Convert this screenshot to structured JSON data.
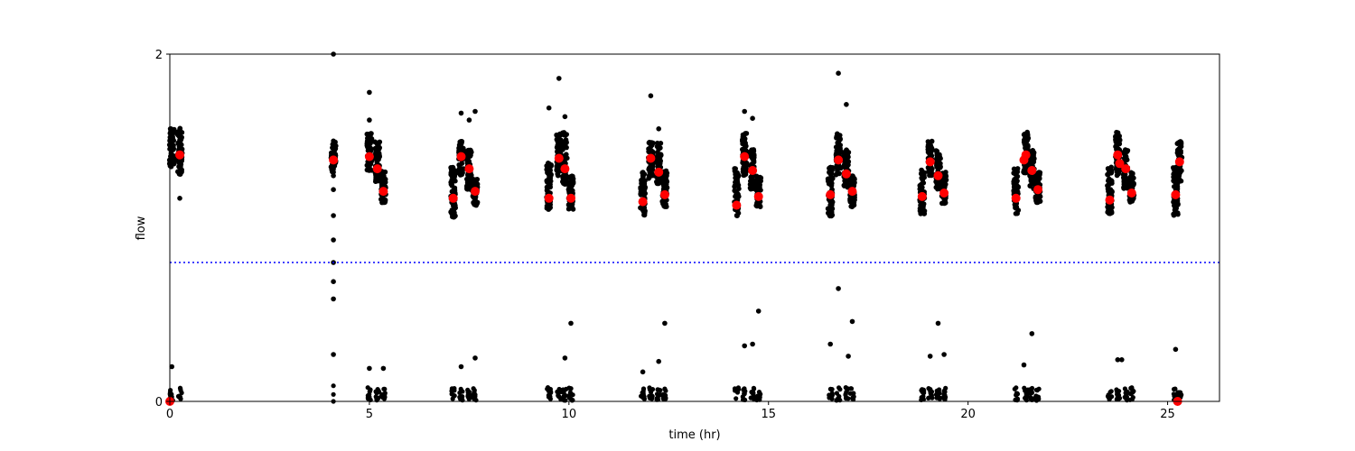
{
  "chart_data": {
    "type": "scatter",
    "title": "",
    "xlabel": "time (hr)",
    "ylabel": "flow",
    "xlim": [
      0,
      26.3
    ],
    "ylim": [
      0,
      2
    ],
    "x_ticks": [
      0,
      5,
      10,
      15,
      20,
      25
    ],
    "y_ticks": [
      0,
      2
    ],
    "grid": false,
    "threshold_line": {
      "y": 0.8,
      "color": "#0000ff",
      "style": "dotted"
    },
    "colors": {
      "raw": "#000000",
      "mean": "#ff0000",
      "threshold": "#0000ff"
    },
    "clusters": [
      {
        "t": 0.05,
        "high": [
          1.35,
          1.58
        ]
      },
      {
        "t": 0.25,
        "high": [
          1.3,
          1.58
        ]
      },
      {
        "t": 4.1,
        "high": [
          1.32,
          1.5
        ]
      },
      {
        "t": 5.0,
        "high": [
          1.33,
          1.55
        ]
      },
      {
        "t": 5.2,
        "high": [
          1.25,
          1.5
        ]
      },
      {
        "t": 5.35,
        "high": [
          1.14,
          1.33
        ]
      },
      {
        "t": 7.1,
        "high": [
          1.06,
          1.35
        ]
      },
      {
        "t": 7.3,
        "high": [
          1.3,
          1.5
        ]
      },
      {
        "t": 7.5,
        "high": [
          1.22,
          1.45
        ]
      },
      {
        "t": 7.65,
        "high": [
          1.12,
          1.28
        ]
      },
      {
        "t": 9.5,
        "high": [
          1.1,
          1.38
        ]
      },
      {
        "t": 9.75,
        "high": [
          1.3,
          1.55
        ]
      },
      {
        "t": 9.9,
        "high": [
          1.25,
          1.55
        ]
      },
      {
        "t": 10.05,
        "high": [
          1.1,
          1.3
        ]
      },
      {
        "t": 11.85,
        "high": [
          1.07,
          1.32
        ]
      },
      {
        "t": 12.05,
        "high": [
          1.28,
          1.5
        ]
      },
      {
        "t": 12.25,
        "high": [
          1.25,
          1.5
        ]
      },
      {
        "t": 12.4,
        "high": [
          1.12,
          1.33
        ]
      },
      {
        "t": 14.2,
        "high": [
          1.06,
          1.35
        ]
      },
      {
        "t": 14.4,
        "high": [
          1.3,
          1.55
        ]
      },
      {
        "t": 14.6,
        "high": [
          1.22,
          1.45
        ]
      },
      {
        "t": 14.75,
        "high": [
          1.12,
          1.3
        ]
      },
      {
        "t": 16.55,
        "high": [
          1.06,
          1.35
        ]
      },
      {
        "t": 16.75,
        "high": [
          1.3,
          1.55
        ]
      },
      {
        "t": 16.95,
        "high": [
          1.22,
          1.45
        ]
      },
      {
        "t": 17.1,
        "high": [
          1.12,
          1.3
        ]
      },
      {
        "t": 18.85,
        "high": [
          1.08,
          1.35
        ]
      },
      {
        "t": 19.05,
        "high": [
          1.3,
          1.5
        ]
      },
      {
        "t": 19.25,
        "high": [
          1.22,
          1.45
        ]
      },
      {
        "t": 19.4,
        "high": [
          1.14,
          1.32
        ]
      },
      {
        "t": 21.2,
        "high": [
          1.08,
          1.35
        ]
      },
      {
        "t": 21.45,
        "high": [
          1.3,
          1.55
        ]
      },
      {
        "t": 21.6,
        "high": [
          1.22,
          1.45
        ]
      },
      {
        "t": 21.75,
        "high": [
          1.14,
          1.32
        ]
      },
      {
        "t": 23.55,
        "high": [
          1.08,
          1.35
        ]
      },
      {
        "t": 23.75,
        "high": [
          1.3,
          1.55
        ]
      },
      {
        "t": 23.95,
        "high": [
          1.22,
          1.45
        ]
      },
      {
        "t": 24.1,
        "high": [
          1.14,
          1.32
        ]
      },
      {
        "t": 25.2,
        "high": [
          1.07,
          1.35
        ]
      },
      {
        "t": 25.3,
        "high": [
          1.25,
          1.5
        ]
      }
    ],
    "outliers": [
      {
        "x": 4.1,
        "y": 2.0
      },
      {
        "x": 4.1,
        "y": 1.5
      },
      {
        "x": 4.1,
        "y": 1.3
      },
      {
        "x": 4.1,
        "y": 1.22
      },
      {
        "x": 4.1,
        "y": 1.07
      },
      {
        "x": 4.1,
        "y": 0.93
      },
      {
        "x": 4.1,
        "y": 0.8
      },
      {
        "x": 4.1,
        "y": 0.69
      },
      {
        "x": 4.1,
        "y": 0.59
      },
      {
        "x": 4.1,
        "y": 0.27
      },
      {
        "x": 5.0,
        "y": 1.78
      },
      {
        "x": 5.0,
        "y": 1.62
      },
      {
        "x": 7.3,
        "y": 1.66
      },
      {
        "x": 7.65,
        "y": 1.67
      },
      {
        "x": 7.5,
        "y": 1.62
      },
      {
        "x": 9.5,
        "y": 1.69
      },
      {
        "x": 9.75,
        "y": 1.86
      },
      {
        "x": 9.9,
        "y": 1.64
      },
      {
        "x": 12.05,
        "y": 1.76
      },
      {
        "x": 12.25,
        "y": 1.57
      },
      {
        "x": 14.4,
        "y": 1.67
      },
      {
        "x": 14.6,
        "y": 1.63
      },
      {
        "x": 16.75,
        "y": 1.89
      },
      {
        "x": 16.95,
        "y": 1.71
      },
      {
        "x": 16.75,
        "y": 0.65
      },
      {
        "x": 0.25,
        "y": 1.17
      },
      {
        "x": 10.05,
        "y": 0.45
      },
      {
        "x": 12.4,
        "y": 0.45
      },
      {
        "x": 14.75,
        "y": 0.52
      },
      {
        "x": 17.1,
        "y": 0.46
      },
      {
        "x": 19.25,
        "y": 0.45
      },
      {
        "x": 21.6,
        "y": 0.39
      },
      {
        "x": 16.55,
        "y": 0.33
      },
      {
        "x": 14.4,
        "y": 0.32
      },
      {
        "x": 14.6,
        "y": 0.33
      },
      {
        "x": 17.0,
        "y": 0.26
      },
      {
        "x": 19.05,
        "y": 0.26
      },
      {
        "x": 19.4,
        "y": 0.27
      },
      {
        "x": 25.2,
        "y": 0.3
      },
      {
        "x": 23.75,
        "y": 0.24
      },
      {
        "x": 23.85,
        "y": 0.24
      },
      {
        "x": 21.4,
        "y": 0.21
      },
      {
        "x": 7.65,
        "y": 0.25
      },
      {
        "x": 9.9,
        "y": 0.25
      },
      {
        "x": 12.25,
        "y": 0.23
      },
      {
        "x": 0.05,
        "y": 0.2
      },
      {
        "x": 5.0,
        "y": 0.19
      },
      {
        "x": 5.35,
        "y": 0.19
      },
      {
        "x": 7.3,
        "y": 0.2
      },
      {
        "x": 11.85,
        "y": 0.17
      }
    ],
    "mean_points": [
      {
        "x": 0.0,
        "y": 0.0
      },
      {
        "x": 0.25,
        "y": 1.42
      },
      {
        "x": 4.1,
        "y": 1.39
      },
      {
        "x": 5.0,
        "y": 1.41
      },
      {
        "x": 5.2,
        "y": 1.34
      },
      {
        "x": 5.35,
        "y": 1.21
      },
      {
        "x": 7.1,
        "y": 1.17
      },
      {
        "x": 7.3,
        "y": 1.41
      },
      {
        "x": 7.5,
        "y": 1.34
      },
      {
        "x": 7.65,
        "y": 1.21
      },
      {
        "x": 9.5,
        "y": 1.17
      },
      {
        "x": 9.75,
        "y": 1.4
      },
      {
        "x": 9.9,
        "y": 1.34
      },
      {
        "x": 10.05,
        "y": 1.17
      },
      {
        "x": 11.85,
        "y": 1.15
      },
      {
        "x": 12.05,
        "y": 1.4
      },
      {
        "x": 12.25,
        "y": 1.32
      },
      {
        "x": 12.4,
        "y": 1.19
      },
      {
        "x": 14.2,
        "y": 1.13
      },
      {
        "x": 14.4,
        "y": 1.41
      },
      {
        "x": 14.6,
        "y": 1.33
      },
      {
        "x": 14.75,
        "y": 1.18
      },
      {
        "x": 16.55,
        "y": 1.19
      },
      {
        "x": 16.75,
        "y": 1.39
      },
      {
        "x": 16.95,
        "y": 1.31
      },
      {
        "x": 17.1,
        "y": 1.21
      },
      {
        "x": 18.85,
        "y": 1.18
      },
      {
        "x": 19.05,
        "y": 1.38
      },
      {
        "x": 19.25,
        "y": 1.3
      },
      {
        "x": 19.4,
        "y": 1.2
      },
      {
        "x": 21.2,
        "y": 1.17
      },
      {
        "x": 21.4,
        "y": 1.39
      },
      {
        "x": 21.45,
        "y": 1.42
      },
      {
        "x": 21.6,
        "y": 1.33
      },
      {
        "x": 21.75,
        "y": 1.22
      },
      {
        "x": 23.55,
        "y": 1.16
      },
      {
        "x": 23.75,
        "y": 1.42
      },
      {
        "x": 23.8,
        "y": 1.37
      },
      {
        "x": 23.95,
        "y": 1.34
      },
      {
        "x": 24.1,
        "y": 1.2
      },
      {
        "x": 25.2,
        "y": 1.19
      },
      {
        "x": 25.3,
        "y": 1.38
      },
      {
        "x": 25.25,
        "y": 0.0
      }
    ]
  }
}
